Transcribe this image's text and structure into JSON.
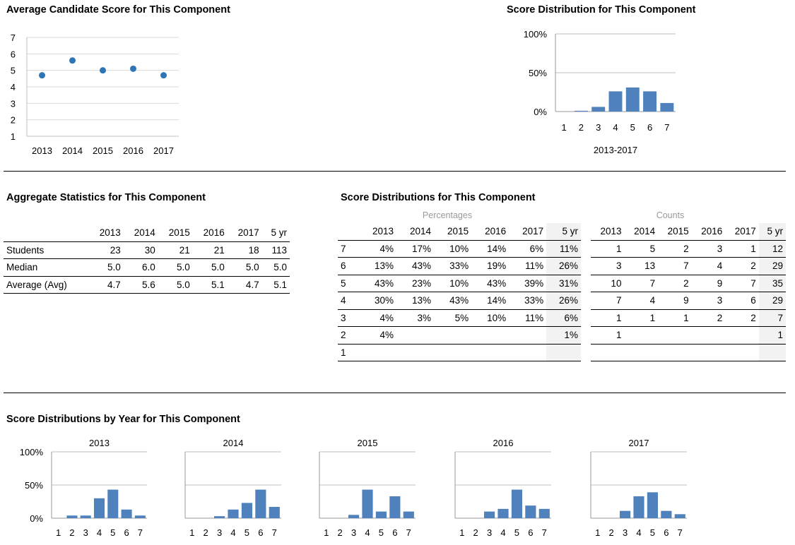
{
  "titles": {
    "avg": "Average Candidate Score for This Component",
    "dist": "Score Distribution for This Component",
    "agg": "Aggregate Statistics for This Component",
    "dists": "Score Distributions for This Component",
    "byyear": "Score Distributions by Year for This Component"
  },
  "years": [
    "2013",
    "2014",
    "2015",
    "2016",
    "2017"
  ],
  "five_yr": "5 yr",
  "agg_stats": [
    {
      "label": "Students",
      "values": [
        "23",
        "30",
        "21",
        "21",
        "18",
        "113"
      ]
    },
    {
      "label": "Median",
      "values": [
        "5.0",
        "6.0",
        "5.0",
        "5.0",
        "5.0",
        "5.0"
      ]
    },
    {
      "label": "Average (Avg)",
      "values": [
        "4.7",
        "5.6",
        "5.0",
        "5.1",
        "4.7",
        "5.1"
      ]
    }
  ],
  "dist_table": {
    "pct_label": "Percentages",
    "cnt_label": "Counts",
    "rows": [
      {
        "score": "7",
        "pct": [
          "4%",
          "17%",
          "10%",
          "14%",
          "6%",
          "11%"
        ],
        "cnt": [
          "1",
          "5",
          "2",
          "3",
          "1",
          "12"
        ]
      },
      {
        "score": "6",
        "pct": [
          "13%",
          "43%",
          "33%",
          "19%",
          "11%",
          "26%"
        ],
        "cnt": [
          "3",
          "13",
          "7",
          "4",
          "2",
          "29"
        ]
      },
      {
        "score": "5",
        "pct": [
          "43%",
          "23%",
          "10%",
          "43%",
          "39%",
          "31%"
        ],
        "cnt": [
          "10",
          "7",
          "2",
          "9",
          "7",
          "35"
        ]
      },
      {
        "score": "4",
        "pct": [
          "30%",
          "13%",
          "43%",
          "14%",
          "33%",
          "26%"
        ],
        "cnt": [
          "7",
          "4",
          "9",
          "3",
          "6",
          "29"
        ]
      },
      {
        "score": "3",
        "pct": [
          "4%",
          "3%",
          "5%",
          "10%",
          "11%",
          "6%"
        ],
        "cnt": [
          "1",
          "1",
          "1",
          "2",
          "2",
          "7"
        ]
      },
      {
        "score": "2",
        "pct": [
          "4%",
          "",
          "",
          "",
          "",
          "1%"
        ],
        "cnt": [
          "1",
          "",
          "",
          "",
          "",
          "1"
        ]
      },
      {
        "score": "1",
        "pct": [
          "",
          "",
          "",
          "",
          "",
          ""
        ],
        "cnt": [
          "",
          "",
          "",
          "",
          "",
          ""
        ]
      }
    ]
  },
  "chart_data": [
    {
      "id": "avg",
      "type": "scatter",
      "title": "Average Candidate Score for This Component",
      "categories": [
        "2013",
        "2014",
        "2015",
        "2016",
        "2017"
      ],
      "values": [
        4.7,
        5.6,
        5.0,
        5.1,
        4.7
      ],
      "ylim": [
        1,
        7
      ],
      "yticks": [
        "1",
        "2",
        "3",
        "4",
        "5",
        "6",
        "7"
      ],
      "grid": true,
      "color": "#2e75b6"
    },
    {
      "id": "dist_all",
      "type": "bar",
      "title": "Score Distribution for This Component",
      "xlabel": "2013-2017",
      "categories": [
        "1",
        "2",
        "3",
        "4",
        "5",
        "6",
        "7"
      ],
      "values": [
        0,
        1,
        6,
        26,
        31,
        26,
        11
      ],
      "ylim": [
        0,
        100
      ],
      "yticks": [
        "0%",
        "50%",
        "100%"
      ],
      "color": "#4f81bd"
    },
    {
      "id": "y2013",
      "type": "bar",
      "title": "2013",
      "categories": [
        "1",
        "2",
        "3",
        "4",
        "5",
        "6",
        "7"
      ],
      "values": [
        0,
        4,
        4,
        30,
        43,
        13,
        4
      ],
      "ylim": [
        0,
        100
      ],
      "yticks": [
        "0%",
        "50%",
        "100%"
      ],
      "color": "#4f81bd"
    },
    {
      "id": "y2014",
      "type": "bar",
      "title": "2014",
      "categories": [
        "1",
        "2",
        "3",
        "4",
        "5",
        "6",
        "7"
      ],
      "values": [
        0,
        0,
        3,
        13,
        23,
        43,
        17
      ],
      "ylim": [
        0,
        100
      ],
      "color": "#4f81bd"
    },
    {
      "id": "y2015",
      "type": "bar",
      "title": "2015",
      "categories": [
        "1",
        "2",
        "3",
        "4",
        "5",
        "6",
        "7"
      ],
      "values": [
        0,
        0,
        5,
        43,
        10,
        33,
        10
      ],
      "ylim": [
        0,
        100
      ],
      "color": "#4f81bd"
    },
    {
      "id": "y2016",
      "type": "bar",
      "title": "2016",
      "categories": [
        "1",
        "2",
        "3",
        "4",
        "5",
        "6",
        "7"
      ],
      "values": [
        0,
        0,
        10,
        14,
        43,
        19,
        14
      ],
      "ylim": [
        0,
        100
      ],
      "color": "#4f81bd"
    },
    {
      "id": "y2017",
      "type": "bar",
      "title": "2017",
      "categories": [
        "1",
        "2",
        "3",
        "4",
        "5",
        "6",
        "7"
      ],
      "values": [
        0,
        0,
        11,
        33,
        39,
        11,
        6
      ],
      "ylim": [
        0,
        100
      ],
      "color": "#4f81bd"
    }
  ]
}
